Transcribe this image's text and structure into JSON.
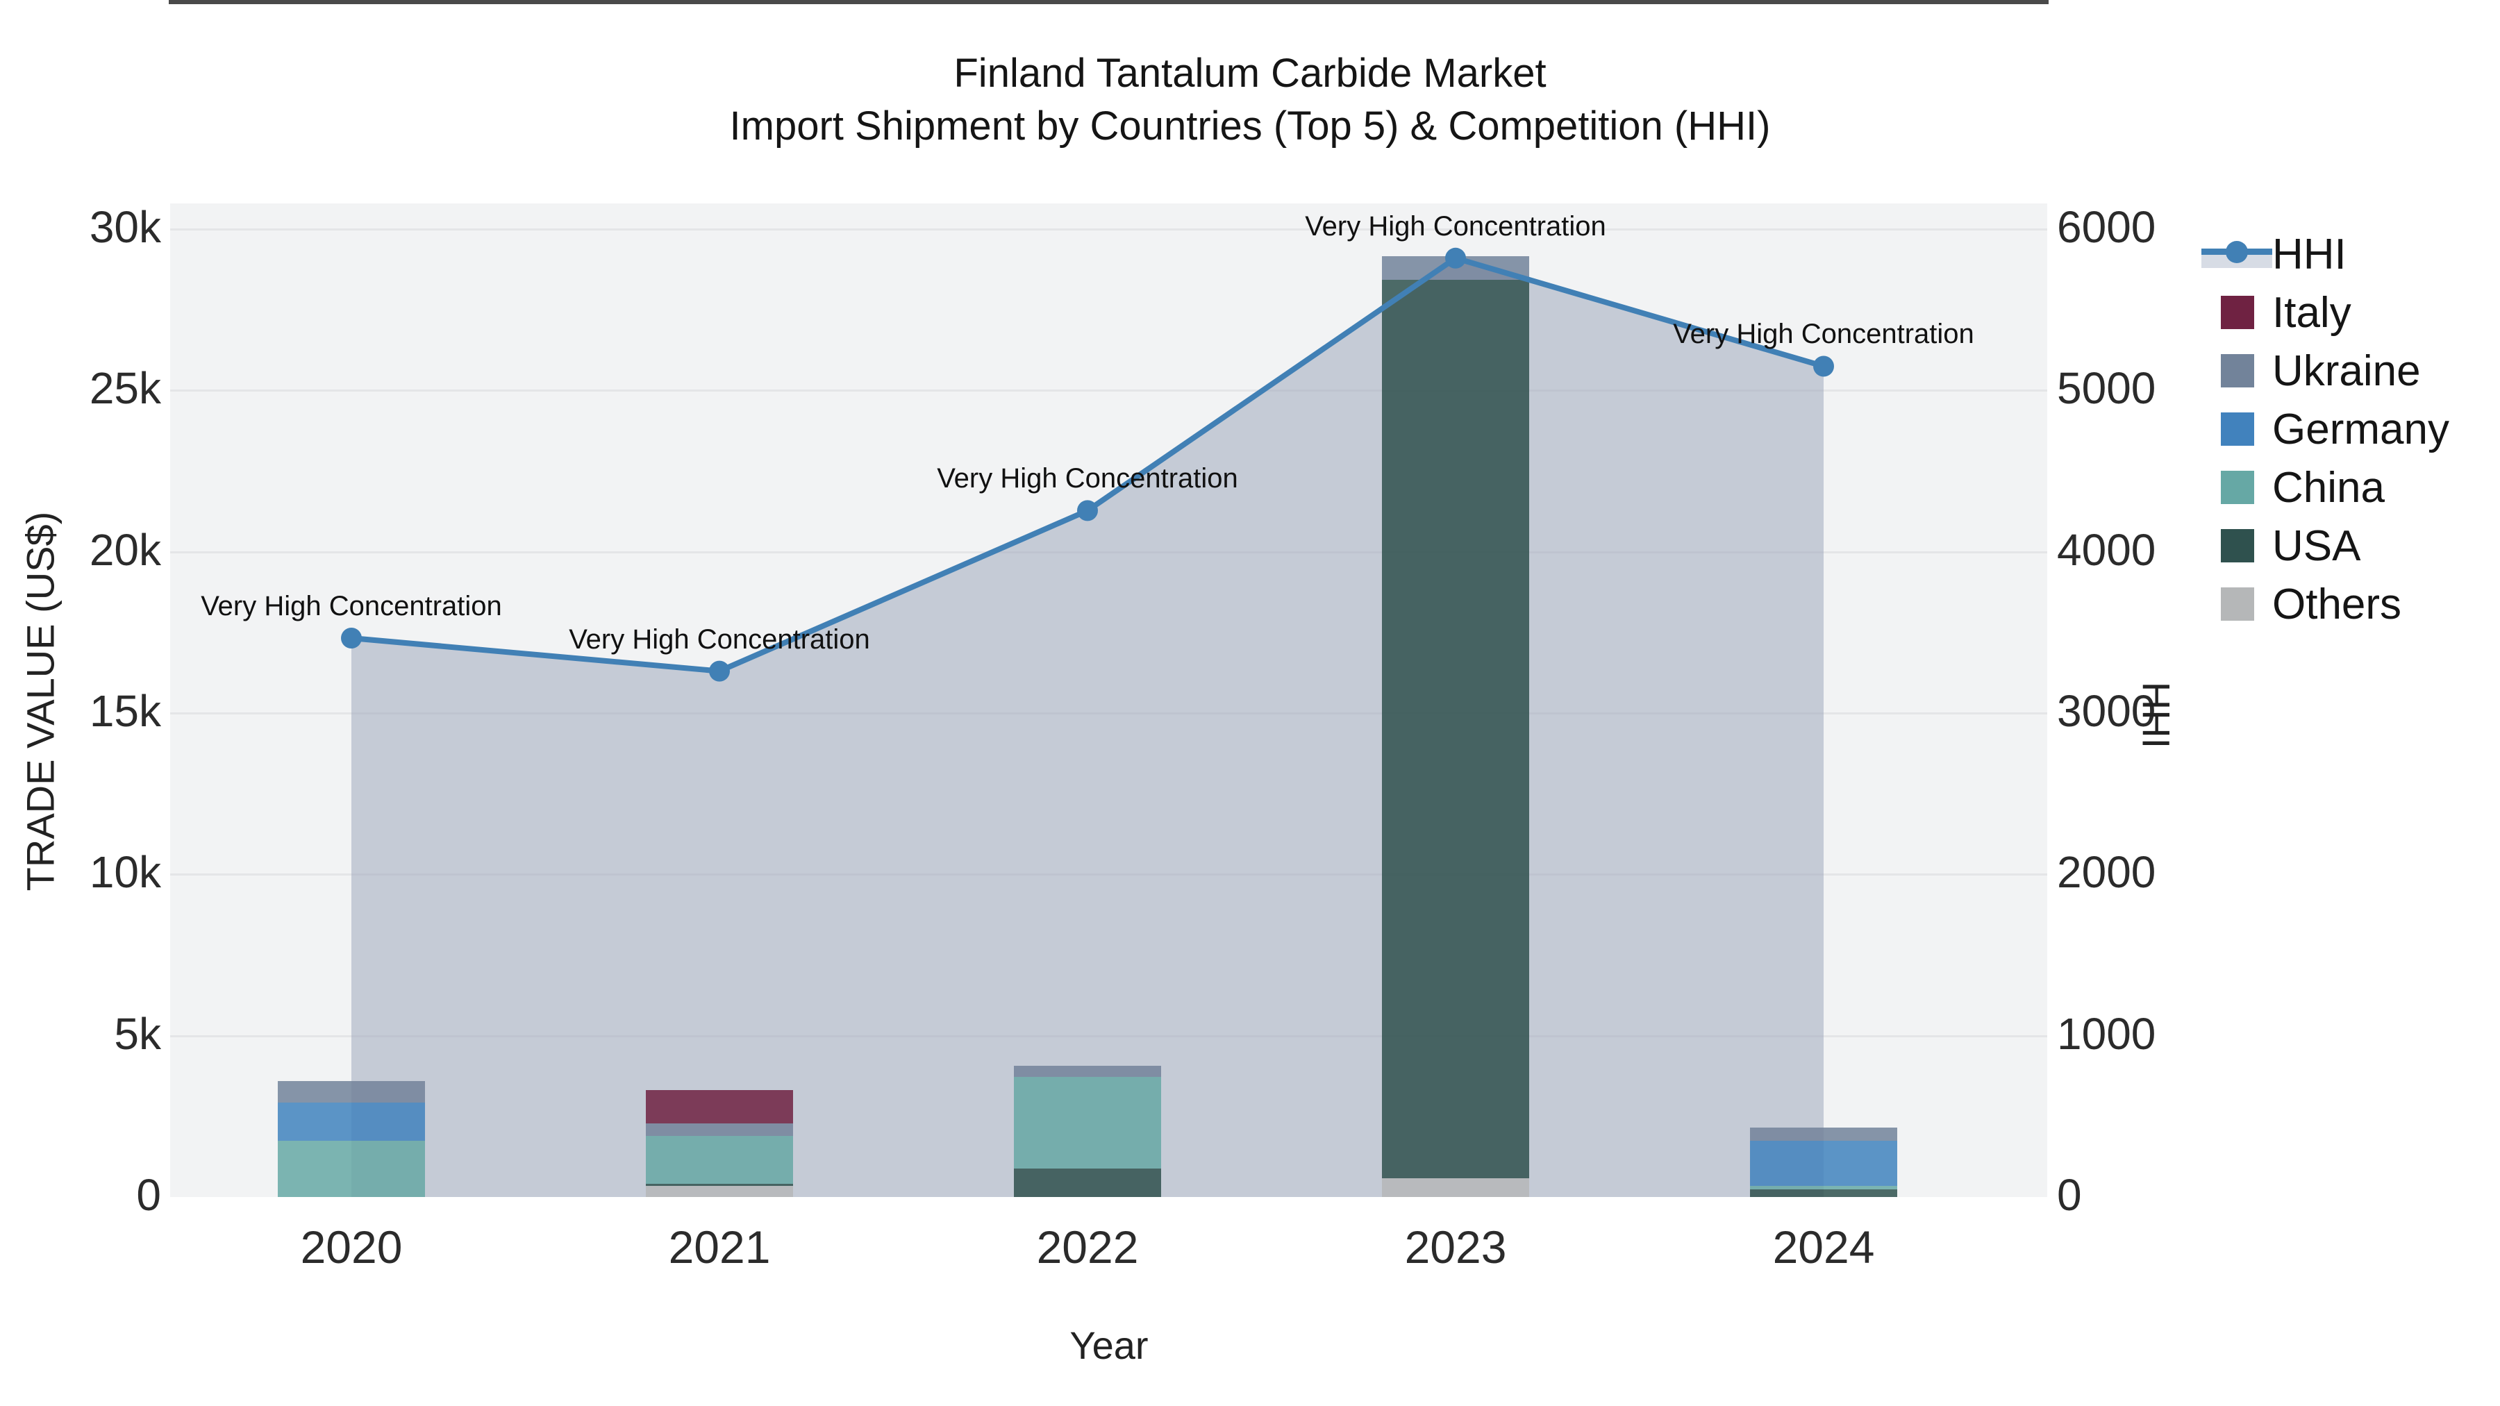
{
  "title": {
    "line1": "Finland Tantalum Carbide Market",
    "line2": "Import Shipment by Countries (Top 5) & Competition (HHI)"
  },
  "axes": {
    "left": {
      "title": "TRADE VALUE (US$)",
      "tick_labels": [
        "0",
        "5k",
        "10k",
        "15k",
        "20k",
        "25k",
        "30k"
      ],
      "tick_values": [
        0,
        5000,
        10000,
        15000,
        20000,
        25000,
        30000
      ],
      "range": [
        0,
        30000
      ]
    },
    "right": {
      "title": "HHI",
      "tick_labels": [
        "0",
        "1000",
        "2000",
        "3000",
        "4000",
        "5000",
        "6000"
      ],
      "tick_values": [
        0,
        1000,
        2000,
        3000,
        4000,
        5000,
        6000
      ],
      "range": [
        0,
        6000
      ]
    },
    "x": {
      "title": "Year",
      "tick_labels": [
        "2020",
        "2021",
        "2022",
        "2023",
        "2024"
      ]
    }
  },
  "legend": {
    "items": [
      {
        "label": "HHI",
        "type": "line",
        "color": "#4180b5"
      },
      {
        "label": "Italy",
        "type": "swatch",
        "color": "#6f2242"
      },
      {
        "label": "Ukraine",
        "type": "swatch",
        "color": "#72839a"
      },
      {
        "label": "Germany",
        "type": "swatch",
        "color": "#4182bd"
      },
      {
        "label": "China",
        "type": "swatch",
        "color": "#66a8a5"
      },
      {
        "label": "USA",
        "type": "swatch",
        "color": "#2f514e"
      },
      {
        "label": "Others",
        "type": "swatch",
        "color": "#b5b7b8"
      }
    ]
  },
  "colors": {
    "plot_background": "#f2f3f4",
    "gridline": "#e4e5e7",
    "axis_line": "#4a4a4a",
    "hhi_line": "#4180b5",
    "hhi_area_fill": "rgba(160,170,190,0.55)",
    "bar_opacity": 0.85
  },
  "chart_data": {
    "type": "bar+line",
    "description": "Stacked import trade value bars (left axis, US$) with HHI concentration line and area fill (right axis)",
    "categories": [
      "2020",
      "2021",
      "2022",
      "2023",
      "2024"
    ],
    "bar_stack_order_bottom_to_top": [
      "Others",
      "USA",
      "China",
      "Germany",
      "Ukraine",
      "Italy"
    ],
    "series": [
      {
        "name": "Others",
        "color": "#b5b7b8",
        "values": [
          0,
          340,
          0,
          575,
          0
        ]
      },
      {
        "name": "USA",
        "color": "#2f514e",
        "values": [
          0,
          60,
          875,
          27850,
          235
        ]
      },
      {
        "name": "China",
        "color": "#66a8a5",
        "values": [
          1750,
          1490,
          2850,
          0,
          105
        ]
      },
      {
        "name": "Germany",
        "color": "#4182bd",
        "values": [
          1175,
          0,
          0,
          0,
          1405
        ]
      },
      {
        "name": "Ukraine",
        "color": "#72839a",
        "values": [
          660,
          385,
          340,
          745,
          405
        ]
      },
      {
        "name": "Italy",
        "color": "#6f2242",
        "values": [
          0,
          1045,
          0,
          0,
          0
        ]
      }
    ],
    "bar_totals": [
      3585,
      3320,
      4065,
      29170,
      2150
    ],
    "line_series": {
      "name": "HHI",
      "color": "#4180b5",
      "axis": "right",
      "fill_to_zero": true,
      "values": [
        3465,
        3260,
        4255,
        5820,
        5150
      ]
    },
    "annotations": [
      {
        "x": "2020",
        "text": "Very High Concentration"
      },
      {
        "x": "2021",
        "text": "Very High Concentration"
      },
      {
        "x": "2022",
        "text": "Very High Concentration"
      },
      {
        "x": "2023",
        "text": "Very High Concentration"
      },
      {
        "x": "2024",
        "text": "Very High Concentration"
      }
    ],
    "title": "Finland Tantalum Carbide Market Import Shipment by Countries (Top 5) & Competition (HHI)",
    "xlabel": "Year",
    "ylabel_left": "TRADE VALUE (US$)",
    "ylabel_right": "HHI",
    "ylim_left": [
      0,
      30000
    ],
    "ylim_right": [
      0,
      6000
    ],
    "grid": true,
    "legend_position": "right"
  }
}
